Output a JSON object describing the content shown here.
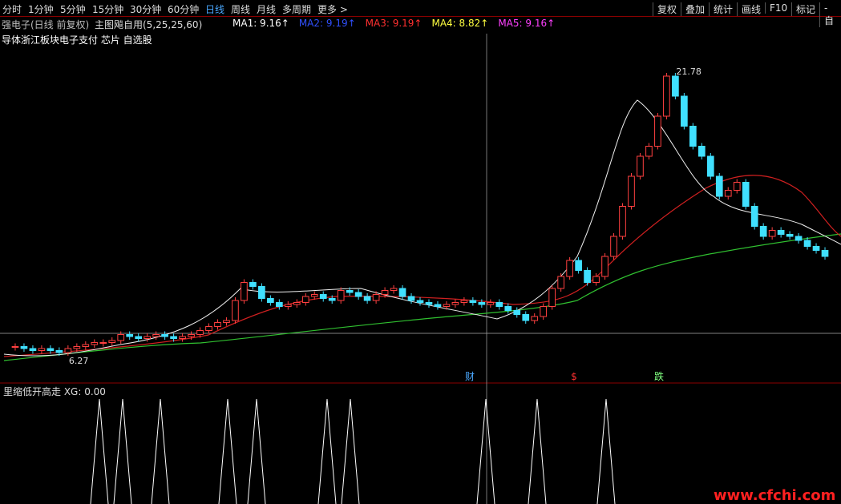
{
  "toolbar": {
    "periods": [
      "分时",
      "1分钟",
      "5分钟",
      "15分钟",
      "30分钟",
      "60分钟",
      "日线",
      "周线",
      "月线",
      "多周期",
      "更多 >"
    ],
    "active": "日线",
    "buttons": [
      "复权",
      "叠加",
      "统计",
      "画线",
      "F10",
      "标记",
      "-自"
    ]
  },
  "header": {
    "stock": "强电子(日线 前复权)",
    "indicator": "主图飚自用(5,25,25,60)",
    "ma": [
      {
        "label": "MA1: 9.16↑",
        "color": "#ffffff"
      },
      {
        "label": "MA2: 9.19↑",
        "color": "#3050ff"
      },
      {
        "label": "MA3: 9.19↑",
        "color": "#ff3030"
      },
      {
        "label": "MA4: 8.82↑",
        "color": "#ffff40"
      },
      {
        "label": "MA5: 9.16↑",
        "color": "#ff40ff"
      }
    ],
    "sectors": "导体浙江板块电子支付 芯片 自选股"
  },
  "price_chart": {
    "high_label": "21.78",
    "low_label": "6.27",
    "closes": [
      7.0,
      7.0,
      6.9,
      6.8,
      6.9,
      6.8,
      6.7,
      6.9,
      7.0,
      7.1,
      7.2,
      7.2,
      7.3,
      7.6,
      7.5,
      7.4,
      7.5,
      7.6,
      7.5,
      7.4,
      7.5,
      7.6,
      7.8,
      8.0,
      8.2,
      8.3,
      9.3,
      10.2,
      10.0,
      9.4,
      9.2,
      9.0,
      9.1,
      9.2,
      9.5,
      9.6,
      9.4,
      9.3,
      9.8,
      9.7,
      9.5,
      9.3,
      9.6,
      9.8,
      9.9,
      9.5,
      9.3,
      9.2,
      9.1,
      9.0,
      9.1,
      9.2,
      9.3,
      9.2,
      9.1,
      9.2,
      9.0,
      8.8,
      8.6,
      8.3,
      8.5,
      9.0,
      9.9,
      10.5,
      11.3,
      10.8,
      10.2,
      10.5,
      11.5,
      12.5,
      14.0,
      15.5,
      16.5,
      17.0,
      18.5,
      20.5,
      19.5,
      18.0,
      17.0,
      16.5,
      15.5,
      14.5,
      14.8,
      15.2,
      14.0,
      13.0,
      12.5,
      12.8,
      12.6,
      12.5,
      12.3,
      12.0,
      11.8,
      11.5
    ],
    "ylim": [
      5.5,
      22.5
    ],
    "annotations": [
      {
        "text": "财",
        "color": "#4aa8ff"
      },
      {
        "text": "$",
        "color": "#ff3030"
      },
      {
        "text": "跌",
        "color": "#80ff80"
      }
    ]
  },
  "sub_chart": {
    "label": "里缩低开高走 XG: 0.00"
  },
  "watermark": "www.cfchi.com"
}
